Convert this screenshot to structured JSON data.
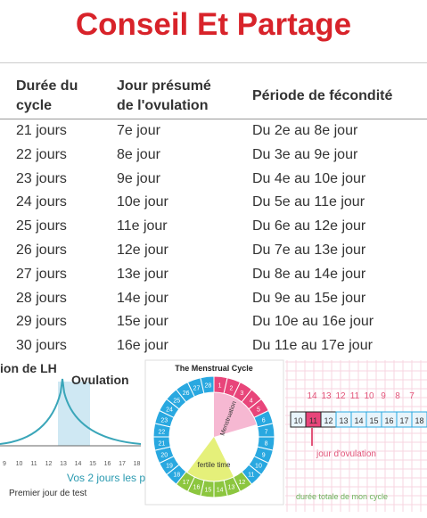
{
  "header": {
    "title": "Conseil Et Partage"
  },
  "table": {
    "columns": [
      "Durée du cycle",
      "Jour présumé de l'ovulation",
      "Période de fécondité"
    ],
    "rows": [
      [
        "21 jours",
        "7e jour",
        "Du 2e au 8e jour"
      ],
      [
        "22 jours",
        "8e jour",
        "Du 3e au 9e jour"
      ],
      [
        "23 jours",
        "9e jour",
        "Du 4e au 10e jour"
      ],
      [
        "24 jours",
        "10e jour",
        "Du 5e au 11e jour"
      ],
      [
        "25 jours",
        "11e jour",
        "Du 6e au 12e jour"
      ],
      [
        "26 jours",
        "12e jour",
        "Du 7e au 13e jour"
      ],
      [
        "27 jours",
        "13e jour",
        "Du 8e au 14e jour"
      ],
      [
        "28 jours",
        "14e jour",
        "Du 9e au 15e jour"
      ],
      [
        "29 jours",
        "15e jour",
        "Du 10e au 16e jour"
      ],
      [
        "30 jours",
        "16e jour",
        "Du 11e au 17e jour"
      ]
    ]
  },
  "figures": [
    {
      "labels": [
        "ion de LH",
        "Ovulation",
        "Vos 2 jours les p",
        "Premier jour de test"
      ],
      "axis": [
        "9",
        "10",
        "11",
        "12",
        "13",
        "14",
        "15",
        "16",
        "17",
        "18"
      ]
    },
    {
      "title": "The Menstrual Cycle",
      "labels": [
        "Menstruation",
        "fertile time"
      ],
      "days": [
        "1",
        "2",
        "3",
        "4",
        "5",
        "6",
        "7",
        "8",
        "9",
        "10",
        "11",
        "12",
        "13",
        "14",
        "15",
        "16",
        "17",
        "18",
        "19",
        "20",
        "21",
        "22",
        "23",
        "24",
        "25",
        "26",
        "27",
        "28"
      ]
    },
    {
      "top_row": [
        "14",
        "13",
        "12",
        "11",
        "10",
        "9",
        "8",
        "7"
      ],
      "bottom_row": [
        "10",
        "11",
        "12",
        "13",
        "14",
        "15",
        "16",
        "17",
        "18"
      ],
      "labels": [
        "jour d'ovulation",
        "durée totale de mon cycle"
      ]
    }
  ]
}
